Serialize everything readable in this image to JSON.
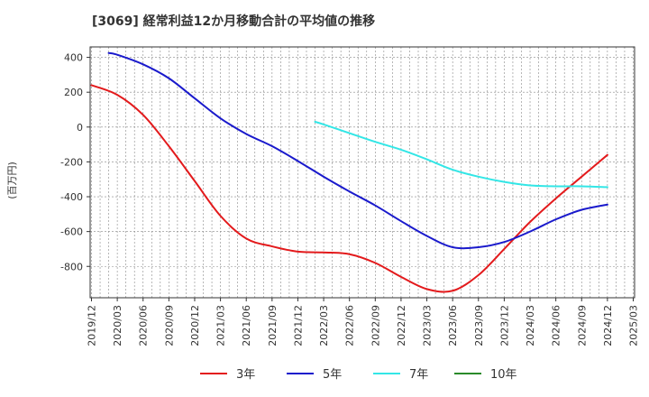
{
  "chart_data": {
    "type": "line",
    "title": "[3069]  経常利益12か月移動合計の平均値の推移",
    "ylabel": "(百万円)",
    "xlabel": "",
    "ylim": [
      -980,
      460
    ],
    "yticks": [
      400,
      200,
      0,
      -200,
      -400,
      -600,
      -800
    ],
    "x_tick_labels": [
      "2019/12",
      "2020/03",
      "2020/06",
      "2020/09",
      "2020/12",
      "2021/03",
      "2021/06",
      "2021/09",
      "2021/12",
      "2022/03",
      "2022/06",
      "2022/09",
      "2022/12",
      "2023/03",
      "2023/06",
      "2023/09",
      "2023/12",
      "2024/03",
      "2024/06",
      "2024/09",
      "2024/12",
      "2025/03"
    ],
    "grid": true,
    "legend_position": "bottom",
    "series": [
      {
        "name": "3年",
        "color": "#e31a1c",
        "points": [
          [
            "2019/12",
            240
          ],
          [
            "2020/03",
            185
          ],
          [
            "2020/06",
            70
          ],
          [
            "2020/09",
            -110
          ],
          [
            "2020/12",
            -310
          ],
          [
            "2021/03",
            -510
          ],
          [
            "2021/06",
            -640
          ],
          [
            "2021/09",
            -685
          ],
          [
            "2021/12",
            -715
          ],
          [
            "2022/03",
            -720
          ],
          [
            "2022/06",
            -730
          ],
          [
            "2022/09",
            -780
          ],
          [
            "2022/12",
            -860
          ],
          [
            "2023/03",
            -930
          ],
          [
            "2023/06",
            -940
          ],
          [
            "2023/09",
            -850
          ],
          [
            "2023/12",
            -700
          ],
          [
            "2024/03",
            -545
          ],
          [
            "2024/06",
            -410
          ],
          [
            "2024/09",
            -285
          ],
          [
            "2024/12",
            -160
          ]
        ]
      },
      {
        "name": "5年",
        "color": "#1a1acc",
        "points": [
          [
            "2020/02",
            425
          ],
          [
            "2020/03",
            415
          ],
          [
            "2020/06",
            360
          ],
          [
            "2020/09",
            280
          ],
          [
            "2020/12",
            165
          ],
          [
            "2021/03",
            50
          ],
          [
            "2021/06",
            -40
          ],
          [
            "2021/09",
            -110
          ],
          [
            "2021/12",
            -195
          ],
          [
            "2022/03",
            -285
          ],
          [
            "2022/06",
            -370
          ],
          [
            "2022/09",
            -450
          ],
          [
            "2022/12",
            -540
          ],
          [
            "2023/03",
            -625
          ],
          [
            "2023/06",
            -690
          ],
          [
            "2023/09",
            -690
          ],
          [
            "2023/12",
            -660
          ],
          [
            "2024/03",
            -600
          ],
          [
            "2024/06",
            -530
          ],
          [
            "2024/09",
            -475
          ],
          [
            "2024/12",
            -445
          ]
        ]
      },
      {
        "name": "7年",
        "color": "#33e6e6",
        "points": [
          [
            "2022/02",
            30
          ],
          [
            "2022/03",
            15
          ],
          [
            "2022/06",
            -35
          ],
          [
            "2022/09",
            -85
          ],
          [
            "2022/12",
            -130
          ],
          [
            "2023/03",
            -185
          ],
          [
            "2023/06",
            -245
          ],
          [
            "2023/09",
            -285
          ],
          [
            "2023/12",
            -315
          ],
          [
            "2024/03",
            -335
          ],
          [
            "2024/06",
            -340
          ],
          [
            "2024/09",
            -340
          ],
          [
            "2024/12",
            -345
          ]
        ]
      },
      {
        "name": "10年",
        "color": "#2a8a2a",
        "points": []
      }
    ]
  }
}
